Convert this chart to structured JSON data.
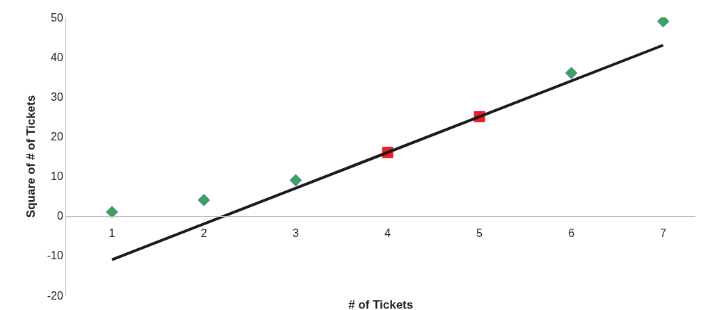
{
  "chart_data": {
    "type": "scatter",
    "xlabel": "# of Tickets",
    "ylabel": "Square of # of Tickets",
    "xlim": [
      0.5,
      7.35
    ],
    "xticks": [
      1,
      2,
      3,
      4,
      5,
      6,
      7
    ],
    "ylim": [
      -20,
      50
    ],
    "yticks": [
      -20,
      -10,
      0,
      10,
      20,
      30,
      40,
      50
    ],
    "grid": false,
    "series": [
      {
        "marker": "diamond",
        "color": "#3aa845",
        "x": [
          1,
          2,
          3,
          6,
          7
        ],
        "values": [
          1,
          4,
          9,
          36,
          49
        ]
      },
      {
        "marker": "square",
        "color": "#ee1c25",
        "x": [
          4,
          5
        ],
        "values": [
          16,
          25
        ]
      },
      {
        "type": "line",
        "marker": "none",
        "color": "#1a1a1a",
        "x": [
          1,
          7
        ],
        "values": [
          -11,
          43
        ]
      }
    ]
  }
}
